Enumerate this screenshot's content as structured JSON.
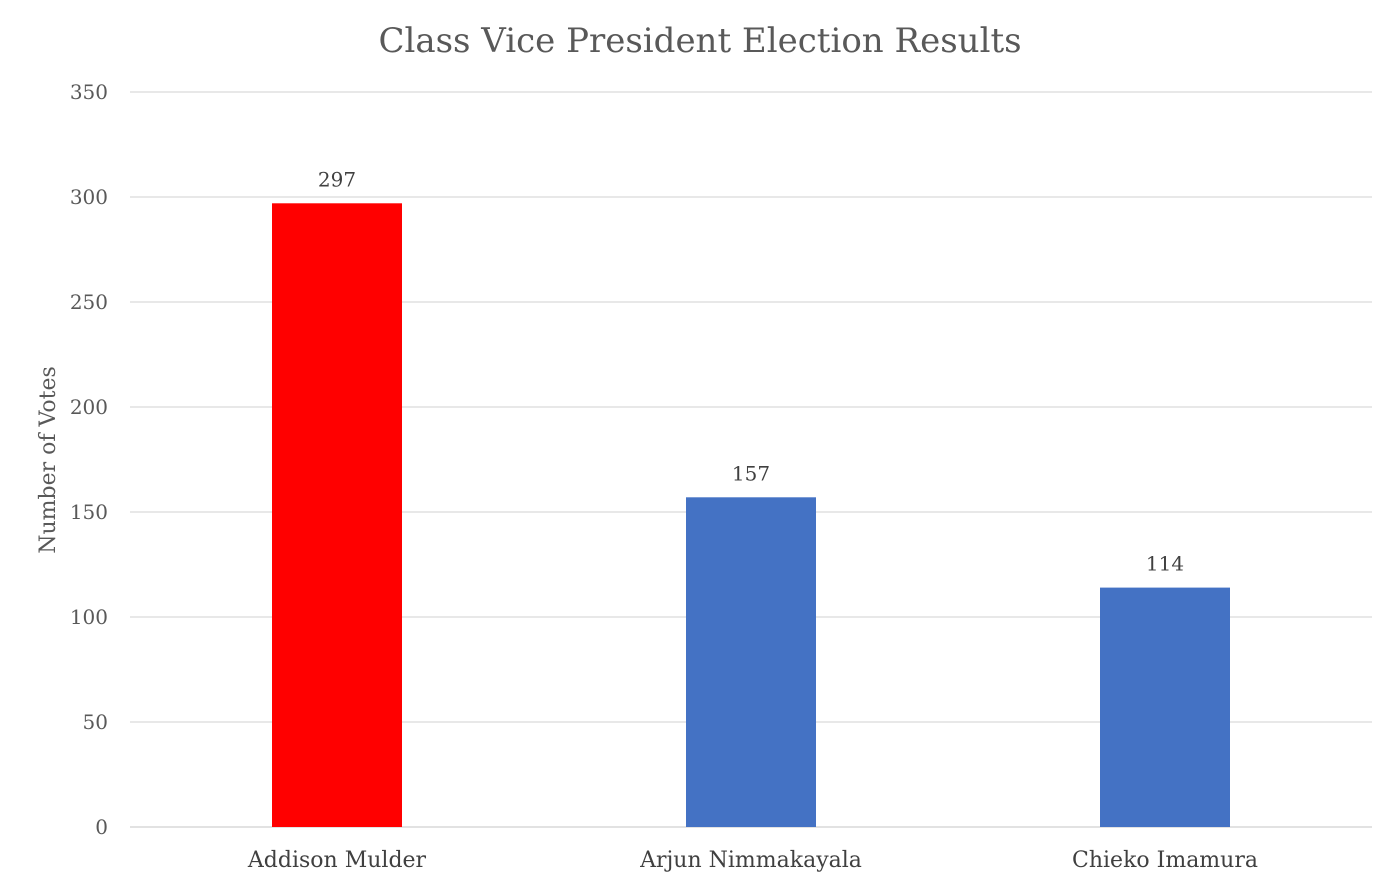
{
  "chart_data": {
    "type": "bar",
    "title": "Class Vice President Election Results",
    "xlabel": "",
    "ylabel": "Number of Votes",
    "categories": [
      "Addison Mulder",
      "Arjun Nimmakayala",
      "Chieko Imamura"
    ],
    "values": [
      297,
      157,
      114
    ],
    "data_labels": [
      "297",
      "157",
      "114"
    ],
    "bar_colors": [
      "#ff0000",
      "#4472c4",
      "#4472c4"
    ],
    "ylim": [
      0,
      350
    ],
    "yticks": [
      0,
      50,
      100,
      150,
      200,
      250,
      300,
      350
    ],
    "grid": true,
    "legend": "none"
  }
}
